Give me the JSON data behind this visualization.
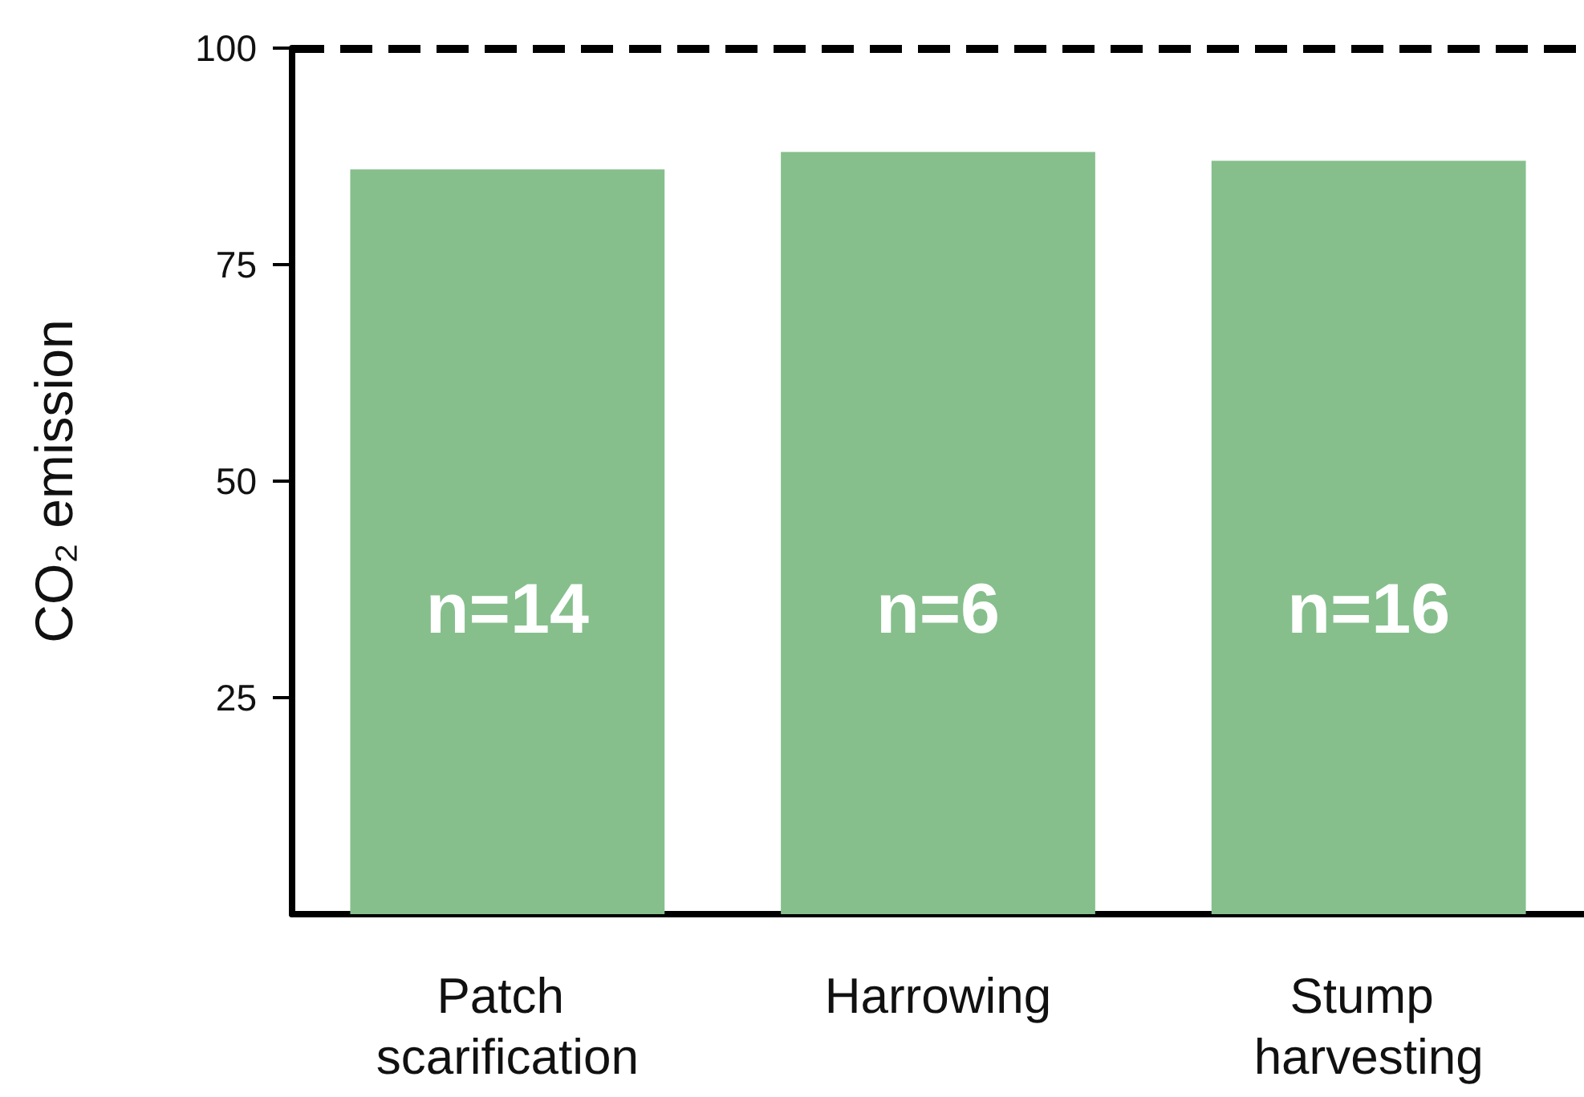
{
  "chart_data": {
    "type": "bar",
    "ylabel": "CO₂ emission",
    "categories": [
      "Patch scarification",
      "Harrowing",
      "Stump harvesting"
    ],
    "values": [
      86,
      88,
      87
    ],
    "color": "#86bf8c",
    "ylim": [
      0,
      100
    ],
    "yticks": [
      25,
      50,
      75,
      100
    ],
    "grid": false,
    "ref_lines": [
      {
        "axis": "y",
        "value": 100,
        "color": "#000000",
        "line_style": "dashed"
      }
    ],
    "annotations": [
      "n=14",
      "n=6",
      "n=16"
    ]
  }
}
